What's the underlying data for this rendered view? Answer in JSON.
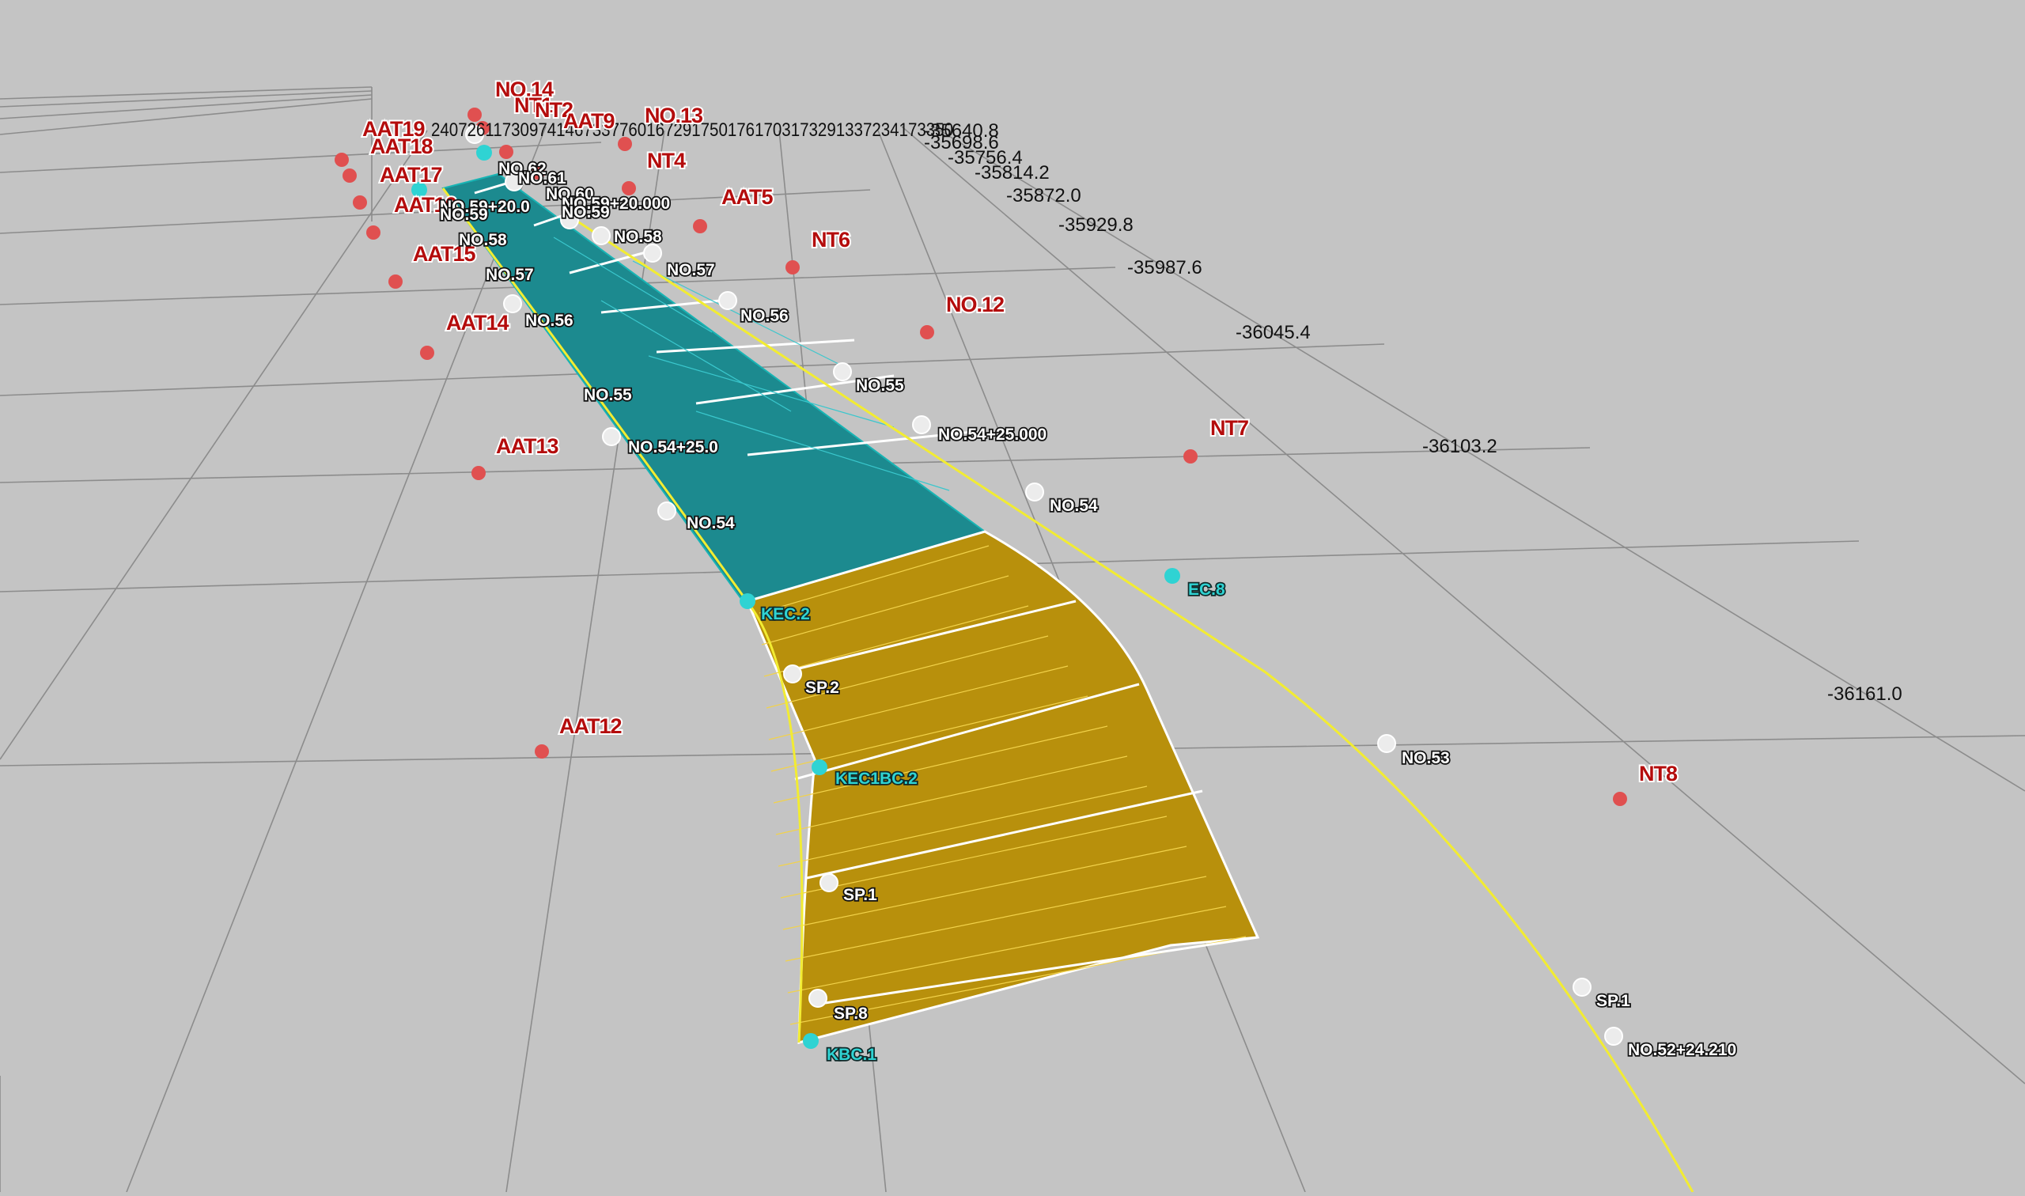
{
  "colors": {
    "background": "#c4c4c4",
    "grid_line": "#8c8c8c",
    "survey_point": "#e05050",
    "survey_label": "#b40c0c",
    "alignment_line": "#f2ec32",
    "teal_surface": "#1c8a8f",
    "gold_surface": "#b8900c",
    "cyan_marker": "#2fd3d3"
  },
  "coord_labels": [
    "-35640.8",
    "-35698.6",
    "-35756.4",
    "-35814.2",
    "-35872.0",
    "-35929.8",
    "-35987.6",
    "-36045.4",
    "-36103.2",
    "-36161.0"
  ],
  "coord_label_cluster": "2407261173097414673377601672917501761703173291337234173350",
  "survey_labels": [
    "NO.14",
    "NT1",
    "NT2",
    "AAT9",
    "NO.13",
    "AAT19",
    "AAT18",
    "NT4",
    "AAT17",
    "AAT5",
    "AAT16",
    "NT6",
    "AAT15",
    "NO.12",
    "AAT14",
    "NT7",
    "AAT13",
    "AAT12",
    "NT8"
  ],
  "station_labels": [
    "NO.62",
    "NO.61",
    "NO.60",
    "NO.59+20.0",
    "NO.59",
    "NO.59+20.000",
    "NO.59",
    "NO.58",
    "NO.58",
    "NO.57",
    "NO.57",
    "NO.56",
    "NO.56",
    "NO.55",
    "NO.55",
    "NO.54+25.0",
    "NO.54+25.000",
    "NO.54",
    "NO.54",
    "SP.2",
    "SP.1",
    "SP.8",
    "NO.53",
    "SP.1",
    "NO.52+24.210"
  ],
  "control_point_labels": [
    "KEC.2",
    "KEC1BC.2",
    "KBC.1",
    "EC.8"
  ]
}
